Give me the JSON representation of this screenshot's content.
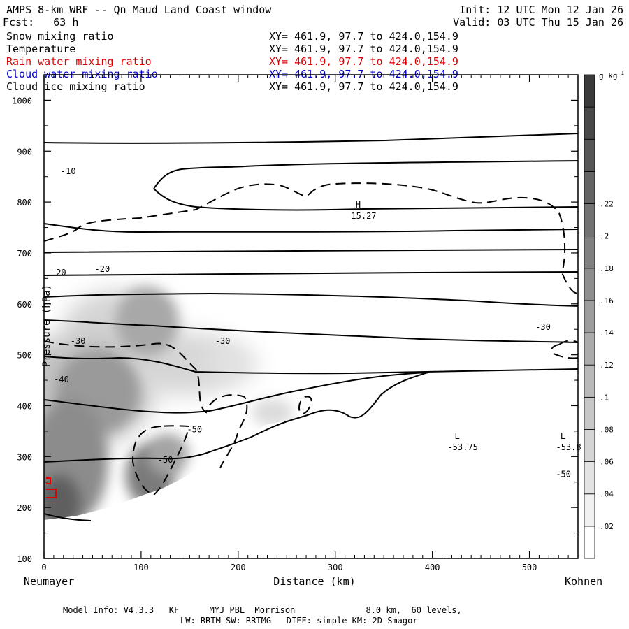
{
  "header": {
    "title": "AMPS 8-km WRF -- Qn Maud Land Coast window",
    "forecast": "Fcst:   63 h",
    "init": "Init: 12 UTC Mon 12 Jan 26",
    "valid": "Valid: 03 UTC Thu 15 Jan 26"
  },
  "legend": [
    {
      "label": "Snow mixing ratio",
      "xy": "XY= 461.9, 97.7 to 424.0,154.9",
      "color": "#000000"
    },
    {
      "label": "Temperature",
      "xy": "XY= 461.9, 97.7 to 424.0,154.9",
      "color": "#000000"
    },
    {
      "label": "Rain water mixing ratio",
      "xy": "XY= 461.9, 97.7 to 424.0,154.9",
      "color": "#e00000"
    },
    {
      "label": "Cloud water mixing ratio",
      "xy": "XY= 461.9, 97.7 to 424.0,154.9",
      "color": "#0000cc"
    },
    {
      "label": "Cloud ice mixing ratio",
      "xy": "XY= 461.9, 97.7 to 424.0,154.9",
      "color": "#000000"
    }
  ],
  "footer": {
    "line1": "Model Info: V4.3.3   KF      MYJ PBL  Morrison              8.0 km,  60 levels,",
    "line2": "LW: RRTM SW: RRTMG   DIFF: simple KM: 2D Smagor"
  },
  "chart_data": {
    "type": "contour",
    "title": "AMPS 8-km WRF -- Qn Maud Land Coast window",
    "xlabel": "Distance (km)",
    "ylabel": "Pressure (hPa)",
    "xlim": [
      0,
      550
    ],
    "ylim": [
      1050,
      100
    ],
    "x_ticks": [
      0,
      100,
      200,
      300,
      400,
      500
    ],
    "y_ticks": [
      100,
      200,
      300,
      400,
      500,
      600,
      700,
      800,
      900,
      1000
    ],
    "x_start_label": "Neumayer",
    "x_end_label": "Kohnen",
    "colorbar": {
      "unit": "g kg",
      "unit_exp": "-1",
      "ticks": [
        ".02",
        ".04",
        ".06",
        ".08",
        ".1",
        ".12",
        ".14",
        ".16",
        ".18",
        ".2",
        ".22"
      ],
      "levels": 15
    },
    "temperature_labels": [
      {
        "text": "-50",
        "x": 125,
        "p": 295
      },
      {
        "text": "-50",
        "x": 155,
        "p": 355
      },
      {
        "text": "-50",
        "x": 535,
        "p": 267
      },
      {
        "text": "-40",
        "x": 18,
        "p": 453
      },
      {
        "text": "-30",
        "x": 35,
        "p": 528
      },
      {
        "text": "-30",
        "x": 184,
        "p": 528
      },
      {
        "text": "-30",
        "x": 514,
        "p": 556
      },
      {
        "text": "-20",
        "x": 15,
        "p": 663
      },
      {
        "text": "-20",
        "x": 60,
        "p": 670
      },
      {
        "text": "-10",
        "x": 25,
        "p": 862
      }
    ],
    "extrema": [
      {
        "kind": "L",
        "value": "-53.75",
        "x": 427,
        "p": 318
      },
      {
        "kind": "L",
        "value": "-53.8",
        "x": 536,
        "p": 318
      },
      {
        "kind": "H",
        "value": "15.27",
        "x": 325,
        "p": 773
      }
    ]
  }
}
